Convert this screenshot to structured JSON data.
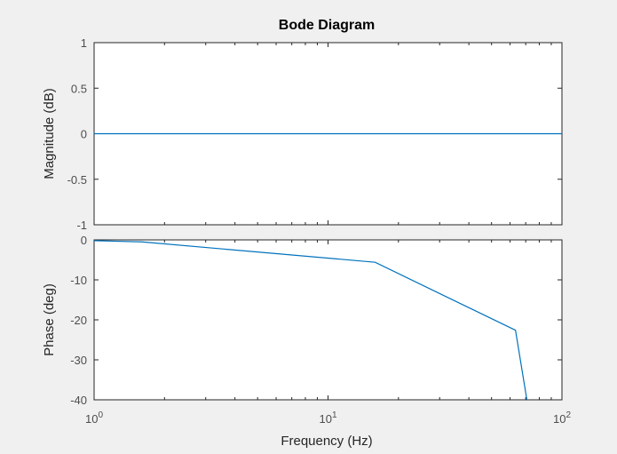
{
  "window": {
    "background": "#f0f0f0"
  },
  "chart_data": {
    "type": "line",
    "title": "Bode Diagram",
    "x_scale": "log",
    "xlabel": "Frequency  (Hz)",
    "xlim": [
      1,
      100
    ],
    "x_ticks": [
      {
        "value": 1,
        "base": "10",
        "exp": "0"
      },
      {
        "value": 10,
        "base": "10",
        "exp": "1"
      },
      {
        "value": 100,
        "base": "10",
        "exp": "2"
      }
    ],
    "series_color": "#0072bd",
    "panels": [
      {
        "id": "magnitude",
        "ylabel": "Magnitude (dB)",
        "ylim": [
          -1,
          1
        ],
        "y_ticks": [
          1,
          0.5,
          0,
          -0.5,
          -1
        ],
        "y_tick_labels": [
          "1",
          "0.5",
          "0",
          "-0.5",
          "-1"
        ],
        "series": [
          {
            "x": [
              1,
              100
            ],
            "y": [
              0,
              0
            ]
          }
        ]
      },
      {
        "id": "phase",
        "ylabel": "Phase (deg)",
        "ylim": [
          -40,
          0
        ],
        "y_ticks": [
          0,
          -10,
          -20,
          -30,
          -40
        ],
        "y_tick_labels": [
          "0",
          "-10",
          "-20",
          "-30",
          "-40"
        ],
        "series": [
          {
            "x": [
              1,
              1.6,
              15.9,
              63.3,
              70.8
            ],
            "y": [
              -0.2,
              -0.5,
              -5.6,
              -22.6,
              -40
            ]
          }
        ]
      }
    ]
  }
}
